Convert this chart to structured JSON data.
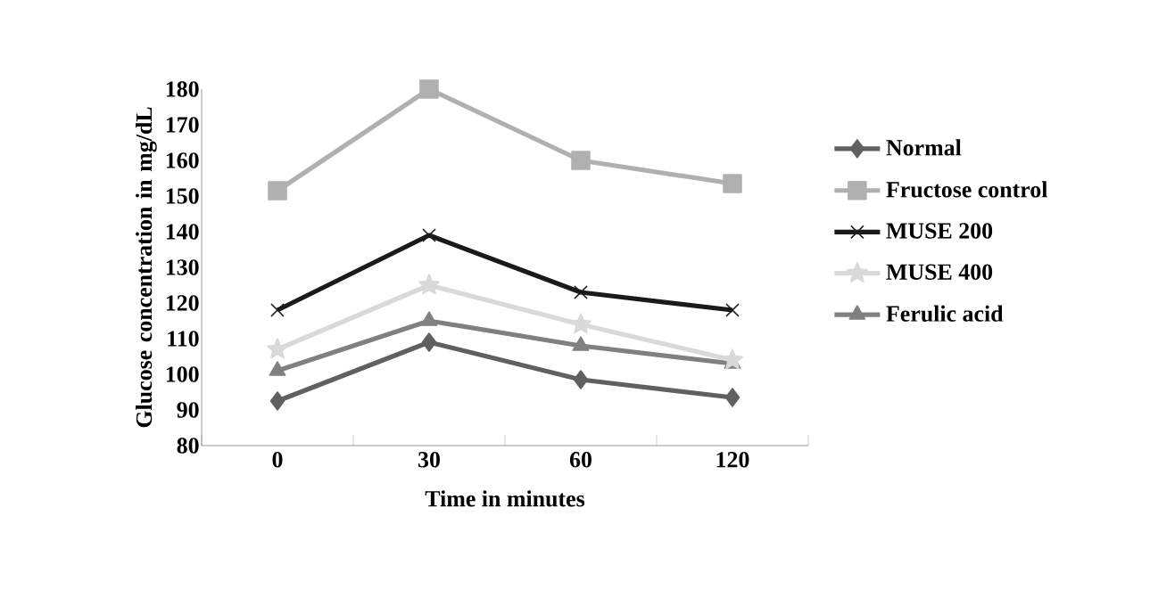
{
  "chart_data": {
    "type": "line",
    "xlabel": "Time in minutes",
    "ylabel": "Glucose concentration in mg/dL",
    "categories": [
      "0",
      "30",
      "60",
      "120"
    ],
    "ylim": [
      80,
      180
    ],
    "yticks": [
      80,
      90,
      100,
      110,
      120,
      130,
      140,
      150,
      160,
      170,
      180
    ],
    "grid": false,
    "legend": "right",
    "line_style": "solid",
    "series": [
      {
        "name": "Normal",
        "color": "#606060",
        "marker": "diamond",
        "values": [
          92.5,
          109,
          98.5,
          93.5
        ]
      },
      {
        "name": "Fructose control",
        "color": "#b0b0b0",
        "marker": "square",
        "values": [
          151.5,
          180,
          160,
          153.5
        ]
      },
      {
        "name": "MUSE 200",
        "color": "#1a1a1a",
        "marker": "cross",
        "values": [
          118,
          139,
          123,
          118
        ]
      },
      {
        "name": "MUSE 400",
        "color": "#d9d9d9",
        "marker": "star",
        "values": [
          107,
          125,
          114,
          104
        ]
      },
      {
        "name": "Ferulic acid",
        "color": "#808080",
        "marker": "triangle",
        "values": [
          101,
          115,
          108,
          103
        ]
      }
    ]
  }
}
